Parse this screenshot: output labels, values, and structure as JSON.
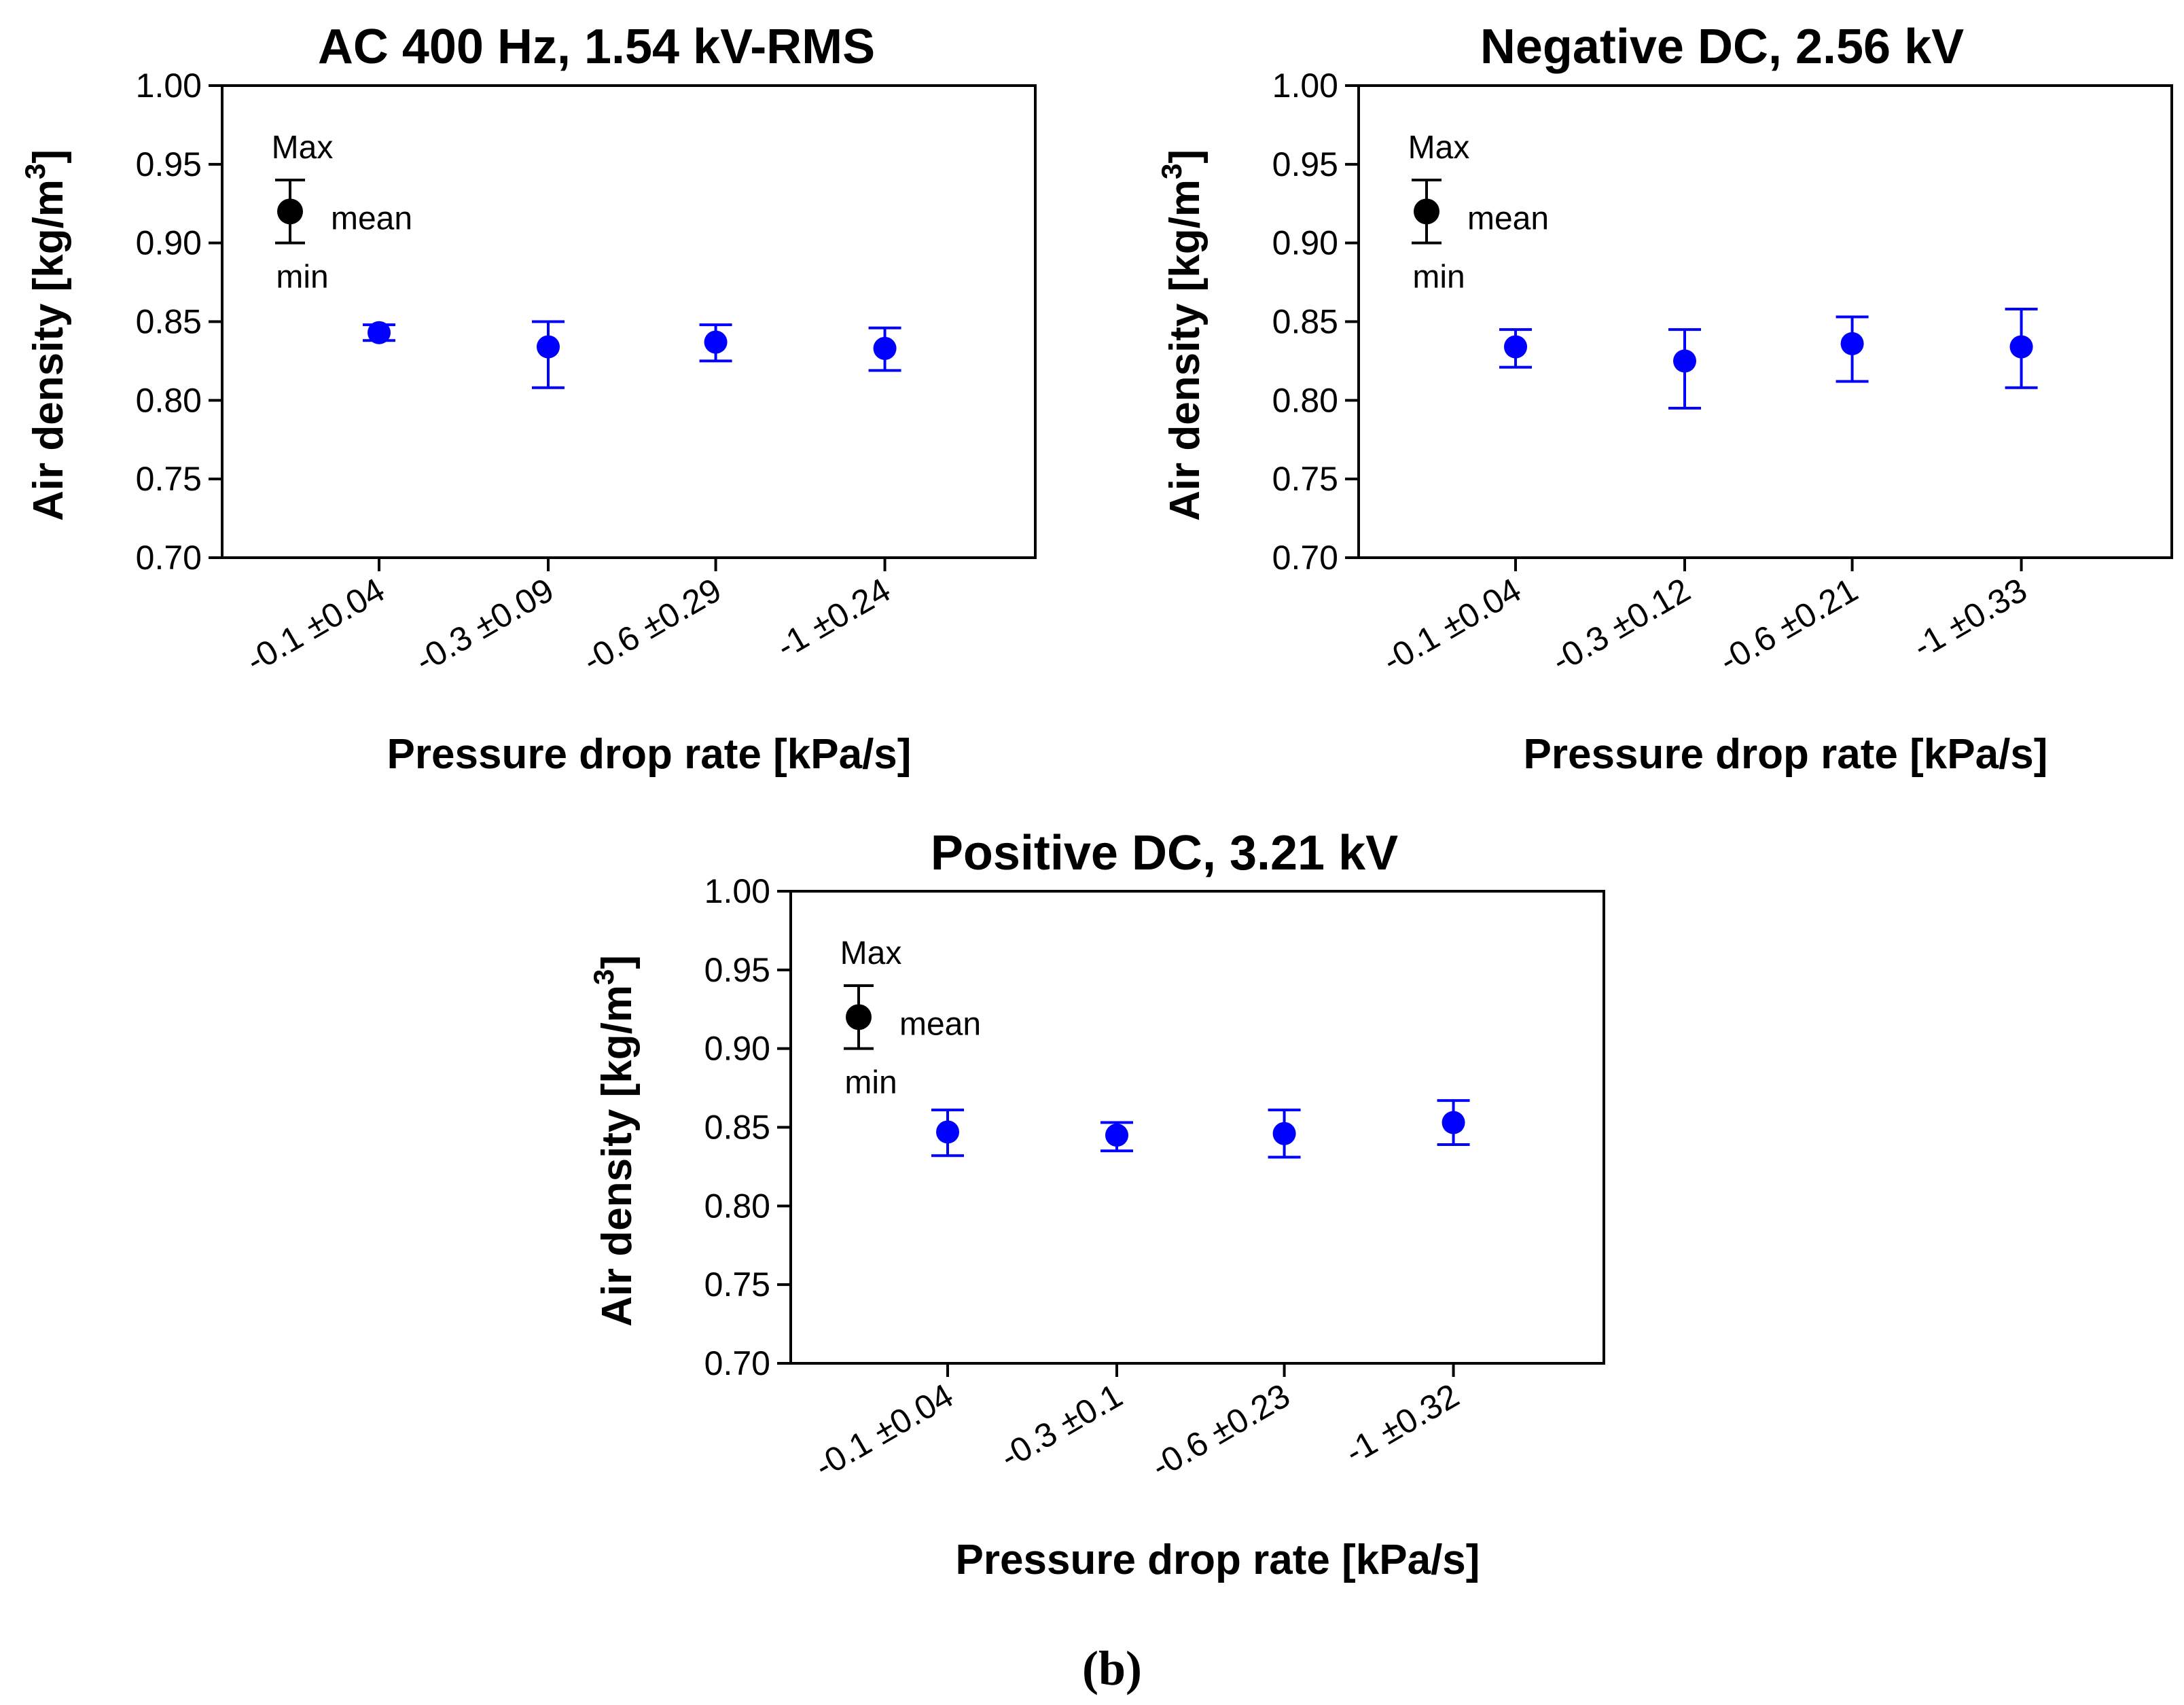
{
  "chart_data": [
    {
      "type": "scatter",
      "title": "AC 400 Hz, 1.54 kV-RMS",
      "xlabel": "Pressure drop rate [kPa/s]",
      "ylabel": "Air density [kg/m",
      "ylabel_sup": "3",
      "ylabel_close": "]",
      "ylim": [
        0.7,
        1.0
      ],
      "yticks": [
        "1.00",
        "0.95",
        "0.90",
        "0.85",
        "0.80",
        "0.75",
        "0.70"
      ],
      "categories": [
        "-0.1 ±0.04",
        "-0.3 ±0.09",
        "-0.6 ±0.29",
        "-1 ±0.24"
      ],
      "mean": [
        0.843,
        0.834,
        0.837,
        0.833
      ],
      "max": [
        0.848,
        0.85,
        0.848,
        0.846
      ],
      "min": [
        0.838,
        0.808,
        0.825,
        0.819
      ],
      "color": "#0000ff",
      "legend": {
        "max": "Max",
        "mean": "mean",
        "min": "min"
      }
    },
    {
      "type": "scatter",
      "title": "Negative DC, 2.56 kV",
      "xlabel": "Pressure drop rate [kPa/s]",
      "ylabel": "Air density [kg/m",
      "ylabel_sup": "3",
      "ylabel_close": "]",
      "ylim": [
        0.7,
        1.0
      ],
      "yticks": [
        "1.00",
        "0.95",
        "0.90",
        "0.85",
        "0.80",
        "0.75",
        "0.70"
      ],
      "categories": [
        "-0.1 ±0.04",
        "-0.3 ±0.12",
        "-0.6 ±0.21",
        "-1 ±0.33"
      ],
      "mean": [
        0.834,
        0.825,
        0.836,
        0.834
      ],
      "max": [
        0.845,
        0.845,
        0.853,
        0.858
      ],
      "min": [
        0.821,
        0.795,
        0.812,
        0.808
      ],
      "color": "#0000ff",
      "legend": {
        "max": "Max",
        "mean": "mean",
        "min": "min"
      }
    },
    {
      "type": "scatter",
      "title": "Positive DC, 3.21 kV",
      "xlabel": "Pressure drop rate [kPa/s]",
      "ylabel": "Air density [kg/m",
      "ylabel_sup": "3",
      "ylabel_close": "]",
      "ylim": [
        0.7,
        1.0
      ],
      "yticks": [
        "1.00",
        "0.95",
        "0.90",
        "0.85",
        "0.80",
        "0.75",
        "0.70"
      ],
      "categories": [
        "-0.1 ±0.04",
        "-0.3 ±0.1",
        "-0.6 ±0.23",
        "-1 ±0.32"
      ],
      "mean": [
        0.847,
        0.845,
        0.846,
        0.853
      ],
      "max": [
        0.861,
        0.853,
        0.861,
        0.867
      ],
      "min": [
        0.832,
        0.835,
        0.831,
        0.839
      ],
      "color": "#0000ff",
      "legend": {
        "max": "Max",
        "mean": "mean",
        "min": "min"
      }
    }
  ],
  "caption": "(b)"
}
